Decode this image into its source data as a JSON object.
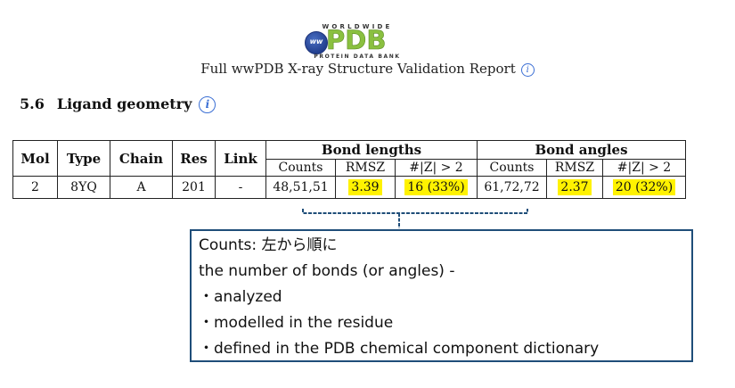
{
  "logo": {
    "top_text": "WORLDWIDE",
    "globe_text": "ww",
    "main_text": "PDB",
    "bottom_text": "PROTEIN DATA BANK"
  },
  "report_title": "Full wwPDB X-ray Structure Validation Report",
  "info_icon": "i",
  "section": {
    "number": "5.6",
    "title": "Ligand geometry"
  },
  "table": {
    "headers": {
      "mol": "Mol",
      "type": "Type",
      "chain": "Chain",
      "res": "Res",
      "link": "Link",
      "bond_lengths": "Bond lengths",
      "bond_angles": "Bond angles",
      "counts": "Counts",
      "rmsz": "RMSZ",
      "z_gt2": "#|Z| > 2"
    },
    "row": {
      "mol": "2",
      "type": "8YQ",
      "chain": "A",
      "res": "201",
      "link": "-",
      "bond_counts": "48,51,51",
      "bond_rmsz": "3.39",
      "bond_z": "16 (33%)",
      "angle_counts": "61,72,72",
      "angle_rmsz": "2.37",
      "angle_z": "20 (32%)"
    },
    "highlight_color": "#fff200"
  },
  "callout": {
    "border_color": "#1f4e79",
    "lines": [
      "Counts: 左から順に",
      "the number of bonds (or angles) -",
      "・analyzed",
      "・modelled in the residue",
      "・defined in the PDB chemical component dictionary"
    ]
  }
}
